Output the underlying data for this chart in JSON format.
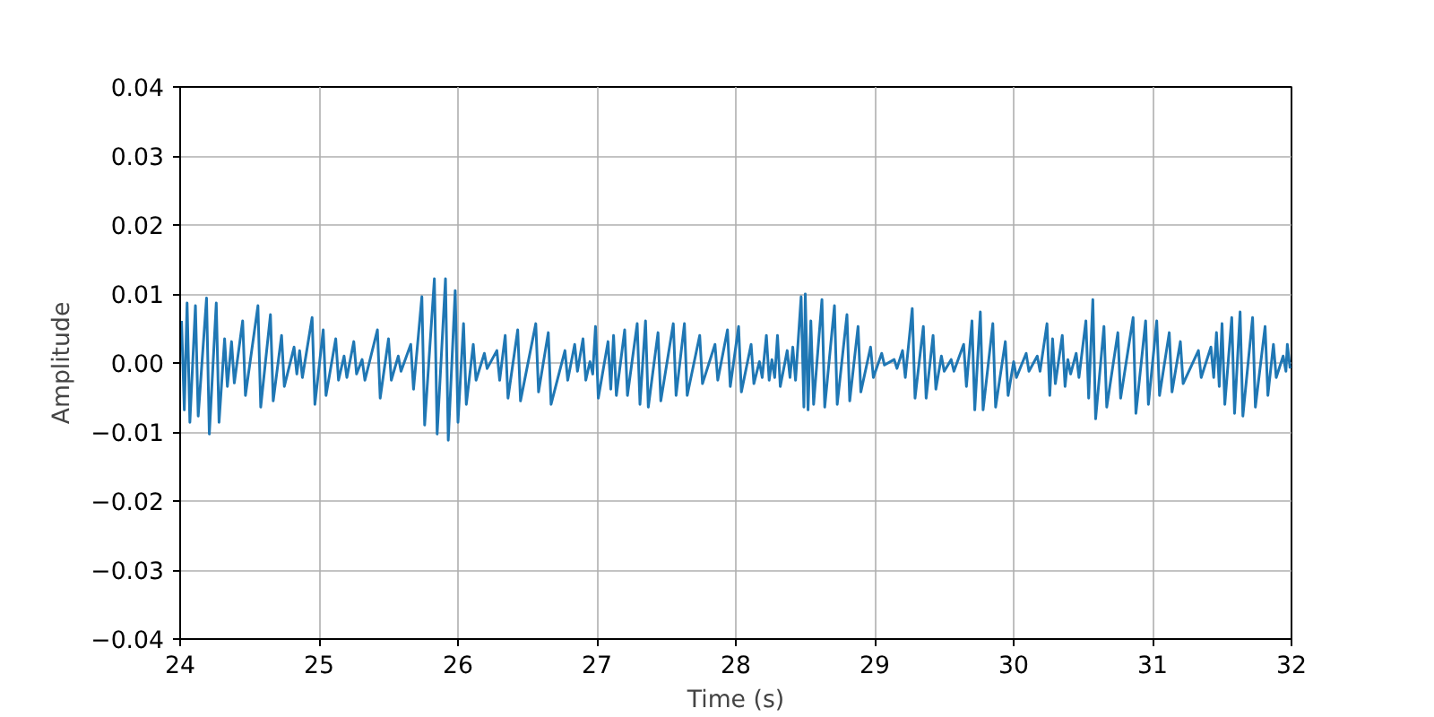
{
  "chart_data": {
    "type": "line",
    "xlabel": "Time (s)",
    "ylabel": "Amplitude",
    "xlim": [
      24,
      32
    ],
    "xticks": [
      24,
      25,
      26,
      27,
      28,
      29,
      30,
      31,
      32
    ],
    "ylim": [
      -0.04,
      0.04
    ],
    "yticks": [
      {
        "value": -0.04,
        "label": "−0.04"
      },
      {
        "value": -0.03,
        "label": "−0.03"
      },
      {
        "value": -0.02,
        "label": "−0.02"
      },
      {
        "value": -0.01,
        "label": "−0.01"
      },
      {
        "value": 0,
        "label": "0.00"
      },
      {
        "value": 0.01,
        "label": "0.01"
      },
      {
        "value": 0.02,
        "label": "0.02"
      },
      {
        "value": 0.03,
        "label": "0.03"
      },
      {
        "value": 0.04,
        "label": "0.04"
      }
    ],
    "grid": true,
    "x": [
      24.01,
      24.03,
      24.05,
      24.07,
      24.11,
      24.13,
      24.19,
      24.21,
      24.26,
      24.28,
      24.32,
      24.34,
      24.37,
      24.39,
      24.45,
      24.47,
      24.56,
      24.58,
      24.65,
      24.67,
      24.73,
      24.75,
      24.82,
      24.84,
      24.86,
      24.88,
      24.95,
      24.97,
      25.03,
      25.05,
      25.12,
      25.14,
      25.18,
      25.2,
      25.25,
      25.27,
      25.31,
      25.33,
      25.42,
      25.44,
      25.5,
      25.52,
      25.57,
      25.59,
      25.66,
      25.68,
      25.74,
      25.76,
      25.83,
      25.85,
      25.91,
      25.93,
      25.98,
      26.0,
      26.04,
      26.06,
      26.11,
      26.13,
      26.19,
      26.21,
      26.28,
      26.3,
      26.34,
      26.36,
      26.43,
      26.45,
      26.56,
      26.58,
      26.65,
      26.67,
      26.77,
      26.79,
      26.84,
      26.86,
      26.9,
      26.92,
      26.95,
      26.97,
      26.99,
      27.01,
      27.08,
      27.1,
      27.12,
      27.14,
      27.2,
      27.22,
      27.29,
      27.31,
      27.35,
      27.37,
      27.44,
      27.46,
      27.55,
      27.57,
      27.63,
      27.65,
      27.74,
      27.76,
      27.85,
      27.87,
      27.94,
      27.96,
      28.02,
      28.04,
      28.11,
      28.13,
      28.17,
      28.19,
      28.22,
      28.24,
      28.26,
      28.28,
      28.3,
      28.32,
      28.37,
      28.39,
      28.41,
      28.43,
      28.47,
      28.49,
      28.5,
      28.52,
      28.54,
      28.56,
      28.62,
      28.64,
      28.71,
      28.73,
      28.8,
      28.82,
      28.88,
      28.9,
      28.97,
      28.99,
      29.05,
      29.07,
      29.14,
      29.16,
      29.2,
      29.22,
      29.27,
      29.29,
      29.35,
      29.37,
      29.42,
      29.44,
      29.48,
      29.5,
      29.55,
      29.57,
      29.64,
      29.66,
      29.7,
      29.72,
      29.76,
      29.78,
      29.85,
      29.87,
      29.94,
      29.96,
      30.0,
      30.02,
      30.09,
      30.11,
      30.17,
      30.19,
      30.24,
      30.26,
      30.28,
      30.3,
      30.35,
      30.37,
      30.39,
      30.41,
      30.45,
      30.47,
      30.52,
      30.54,
      30.57,
      30.59,
      30.65,
      30.67,
      30.75,
      30.77,
      30.86,
      30.88,
      30.95,
      30.97,
      31.03,
      31.05,
      31.12,
      31.14,
      31.2,
      31.22,
      31.33,
      31.35,
      31.42,
      31.44,
      31.46,
      31.48,
      31.5,
      31.52,
      31.57,
      31.59,
      31.63,
      31.65,
      31.72,
      31.74,
      31.81,
      31.83,
      31.87,
      31.89,
      31.94,
      31.96,
      31.97,
      31.99
    ],
    "series": [
      {
        "color": "#1f77b4",
        "values": [
          0.0061,
          -0.0068,
          0.0087,
          -0.0086,
          0.0083,
          -0.0077,
          0.0094,
          -0.0103,
          0.0087,
          -0.0086,
          0.0035,
          -0.0034,
          0.0031,
          -0.0029,
          0.0061,
          -0.0047,
          0.0083,
          -0.0064,
          0.007,
          -0.0055,
          0.004,
          -0.0034,
          0.0023,
          -0.0016,
          0.0018,
          -0.0021,
          0.0066,
          -0.006,
          0.0048,
          -0.0047,
          0.0035,
          -0.0025,
          0.001,
          -0.0021,
          0.0031,
          -0.0016,
          0.0005,
          -0.0025,
          0.0048,
          -0.0051,
          0.0035,
          -0.0025,
          0.001,
          -0.0012,
          0.0027,
          -0.0038,
          0.0096,
          -0.009,
          0.0122,
          -0.0103,
          0.0122,
          -0.0112,
          0.0105,
          -0.0086,
          0.0057,
          -0.006,
          0.0027,
          -0.0025,
          0.0014,
          -0.0008,
          0.0018,
          -0.0025,
          0.004,
          -0.0051,
          0.0048,
          -0.0055,
          0.0057,
          -0.0042,
          0.0044,
          -0.006,
          0.0018,
          -0.0025,
          0.0027,
          -0.0012,
          0.0035,
          -0.0025,
          0.0002,
          -0.0016,
          0.0053,
          -0.0051,
          0.0031,
          -0.0038,
          0.004,
          -0.0047,
          0.0048,
          -0.0047,
          0.0057,
          -0.006,
          0.0061,
          -0.0064,
          0.0044,
          -0.0055,
          0.0057,
          -0.0047,
          0.0057,
          -0.0047,
          0.004,
          -0.003,
          0.0027,
          -0.0025,
          0.0048,
          -0.0034,
          0.0053,
          -0.0042,
          0.0027,
          -0.003,
          0.0002,
          -0.0021,
          0.004,
          -0.0025,
          0.0005,
          -0.0021,
          0.004,
          -0.0034,
          0.0018,
          -0.0021,
          0.0023,
          -0.0025,
          0.0096,
          -0.0064,
          0.01,
          -0.0068,
          0.0061,
          -0.006,
          0.0092,
          -0.0064,
          0.0083,
          -0.006,
          0.007,
          -0.0055,
          0.0053,
          -0.0042,
          0.0023,
          -0.0021,
          0.0014,
          -0.0003,
          0.0005,
          -0.0008,
          0.0018,
          -0.0021,
          0.0079,
          -0.0051,
          0.0053,
          -0.0051,
          0.004,
          -0.0038,
          0.001,
          -0.0012,
          0.0005,
          -0.0012,
          0.0027,
          -0.0034,
          0.0061,
          -0.0068,
          0.0074,
          -0.0068,
          0.0057,
          -0.0064,
          0.0031,
          -0.0047,
          0.0002,
          -0.0021,
          0.0014,
          -0.0012,
          0.001,
          -0.0012,
          0.0057,
          -0.0047,
          0.0035,
          -0.003,
          0.004,
          -0.0034,
          0.0005,
          -0.0016,
          0.0014,
          -0.0021,
          0.0061,
          -0.0051,
          0.0092,
          -0.0081,
          0.0053,
          -0.0064,
          0.0044,
          -0.0051,
          0.0066,
          -0.0073,
          0.0061,
          -0.006,
          0.0061,
          -0.0047,
          0.0044,
          -0.0042,
          0.0031,
          -0.003,
          0.0018,
          -0.0021,
          0.0023,
          -0.0021,
          0.0044,
          -0.0034,
          0.0057,
          -0.006,
          0.0066,
          -0.0073,
          0.0074,
          -0.0077,
          0.0066,
          -0.0064,
          0.0053,
          -0.0047,
          0.0027,
          -0.0021,
          0.001,
          -0.0012,
          0.0027,
          -0.0008
        ]
      }
    ]
  }
}
